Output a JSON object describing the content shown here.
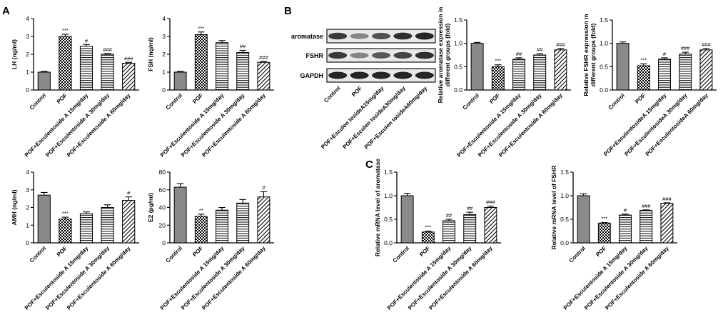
{
  "panel_letters": {
    "A": "A",
    "B": "B",
    "C": "C"
  },
  "western_blot": {
    "rows": [
      "aromatase",
      "FSHR",
      "GAPDH"
    ],
    "lanes": [
      "Control",
      "POF",
      "POF+Esculen tosideA15mg/day",
      "POF+Esculen tosideA30mg/day",
      "POF+Esculen tosideA60mg/day"
    ],
    "band_intensity": {
      "aromatase": [
        0.8,
        0.45,
        0.7,
        0.85,
        0.9
      ],
      "FSHR": [
        0.8,
        0.45,
        0.65,
        0.75,
        0.85
      ],
      "GAPDH": [
        0.9,
        0.9,
        0.9,
        0.9,
        0.9
      ]
    }
  },
  "chart_data": [
    {
      "id": "lh",
      "type": "bar",
      "categories": [
        "Control",
        "POF",
        "POF+Esculentoside A 15mg/day",
        "POF+Esculentoside A 30mg/day",
        "POF+Esculentoside A 60mg/day"
      ],
      "values": [
        1.0,
        3.0,
        2.45,
        2.0,
        1.5
      ],
      "errors": [
        0.04,
        0.12,
        0.1,
        0.04,
        0.05
      ],
      "significance": [
        "",
        "***",
        "#",
        "###",
        "###"
      ],
      "patterns": [
        "gray",
        "check",
        "hline",
        "hline",
        "diag"
      ],
      "ylabel": "LH (ng/ml)",
      "ylim": [
        0,
        4
      ],
      "yticks": [
        0,
        1,
        2,
        3,
        4
      ]
    },
    {
      "id": "fsh",
      "type": "bar",
      "categories": [
        "Control",
        "POF",
        "POF+Esculentoside A 15mg/day",
        "POF+Esculentoside A 30mg/day",
        "POF+Esculentoside A 60mg/day"
      ],
      "values": [
        1.0,
        3.1,
        2.65,
        2.1,
        1.55
      ],
      "errors": [
        0.04,
        0.15,
        0.12,
        0.12,
        0.05
      ],
      "significance": [
        "",
        "***",
        "",
        "##",
        "###"
      ],
      "patterns": [
        "gray",
        "check",
        "hline",
        "hline",
        "diag"
      ],
      "ylabel": "FSH (ng/ml)",
      "ylim": [
        0,
        4
      ],
      "yticks": [
        0,
        1,
        2,
        3,
        4
      ]
    },
    {
      "id": "aromatase_protein",
      "type": "bar",
      "categories": [
        "Control",
        "POF",
        "POF+Esculentoside A 15mg/day",
        "POF+Esculentoside A 30mg/day",
        "POF+Esculentoside A 60mg/day"
      ],
      "values": [
        1.0,
        0.5,
        0.66,
        0.75,
        0.86
      ],
      "errors": [
        0.02,
        0.04,
        0.03,
        0.03,
        0.03
      ],
      "significance": [
        "",
        "***",
        "##",
        "##",
        "###"
      ],
      "patterns": [
        "gray",
        "check",
        "hline",
        "hline",
        "diag"
      ],
      "ylabel": [
        "Relative aromatase expression in",
        "different groups (fold)"
      ],
      "ylim": [
        0,
        1.5
      ],
      "yticks": [
        0.0,
        0.5,
        1.0,
        1.5
      ]
    },
    {
      "id": "fshr_protein",
      "type": "bar",
      "categories": [
        "Control",
        "POF",
        "POF+EsculentosideA 15mg/day",
        "POF+EsculentosideA 30mg/day",
        "POF+EsculentosideA 60mg/day"
      ],
      "values": [
        1.0,
        0.52,
        0.66,
        0.77,
        0.86
      ],
      "errors": [
        0.03,
        0.04,
        0.03,
        0.04,
        0.03
      ],
      "significance": [
        "",
        "***",
        "#",
        "###",
        "###"
      ],
      "patterns": [
        "gray",
        "check",
        "hline",
        "hline",
        "diag"
      ],
      "ylabel": [
        "Relative FSHR expression in",
        "different groups (fold)"
      ],
      "ylim": [
        0,
        1.5
      ],
      "yticks": [
        0.0,
        0.5,
        1.0,
        1.5
      ]
    },
    {
      "id": "amh",
      "type": "bar",
      "categories": [
        "Control",
        "POF",
        "POF+Esculentoside A 15mg/day",
        "POF+Esculentoside A 30mg/day",
        "POF+Esculentoside A 60mg/day"
      ],
      "values": [
        2.7,
        1.35,
        1.65,
        2.0,
        2.4
      ],
      "errors": [
        0.15,
        0.1,
        0.1,
        0.15,
        0.2
      ],
      "significance": [
        "",
        "***",
        "",
        "",
        "#"
      ],
      "patterns": [
        "gray",
        "check",
        "hline",
        "hline",
        "diag"
      ],
      "ylabel": "AMH (ng/ml)",
      "ylim": [
        0,
        4
      ],
      "yticks": [
        0,
        1,
        2,
        3,
        4
      ]
    },
    {
      "id": "e2",
      "type": "bar",
      "categories": [
        "Control",
        "POF",
        "POF+Esculentoside A 15mg/day",
        "POF+Esculentoside A 30mg/day",
        "POF+Esculentoside A 60mg/day"
      ],
      "values": [
        63,
        30,
        37,
        45,
        52
      ],
      "errors": [
        4,
        2.5,
        3,
        4,
        6
      ],
      "significance": [
        "",
        "**",
        "",
        "",
        "#"
      ],
      "patterns": [
        "gray",
        "check",
        "hline",
        "hline",
        "diag"
      ],
      "ylabel": "E2 (pg/ml)",
      "ylim": [
        0,
        80
      ],
      "yticks": [
        0,
        20,
        40,
        60,
        80
      ]
    },
    {
      "id": "aromatase_mrna",
      "type": "bar",
      "categories": [
        "Control",
        "POF",
        "POF+Esculentoside A 15mg/day",
        "POF+Esculentoside A 30mg/day",
        "POF+Esculentoside A 60mg/day"
      ],
      "values": [
        1.0,
        0.23,
        0.47,
        0.6,
        0.75
      ],
      "errors": [
        0.05,
        0.02,
        0.03,
        0.05,
        0.03
      ],
      "significance": [
        "",
        "***",
        "##",
        "##",
        "###"
      ],
      "patterns": [
        "gray",
        "check",
        "hline",
        "hline",
        "diag"
      ],
      "ylabel": [
        "Relative mRNA level of aromatase"
      ],
      "ylim": [
        0,
        1.5
      ],
      "yticks": [
        0.0,
        0.5,
        1.0,
        1.5
      ]
    },
    {
      "id": "fshr_mrna",
      "type": "bar",
      "categories": [
        "Control",
        "POF",
        "POF+Esculentoside A 15mg/day",
        "POF+Esculentoside A 30mg/day",
        "POF+Esculentoside A 60mg/day"
      ],
      "values": [
        1.0,
        0.42,
        0.59,
        0.69,
        0.84
      ],
      "errors": [
        0.04,
        0.01,
        0.02,
        0.01,
        0.01
      ],
      "significance": [
        "",
        "***",
        "#",
        "###",
        "###"
      ],
      "patterns": [
        "gray",
        "check",
        "hline",
        "hline",
        "diag"
      ],
      "ylabel": [
        "Relative mRNA level of FSHR"
      ],
      "ylim": [
        0,
        1.5
      ],
      "yticks": [
        0.0,
        0.5,
        1.0,
        1.5
      ]
    }
  ]
}
